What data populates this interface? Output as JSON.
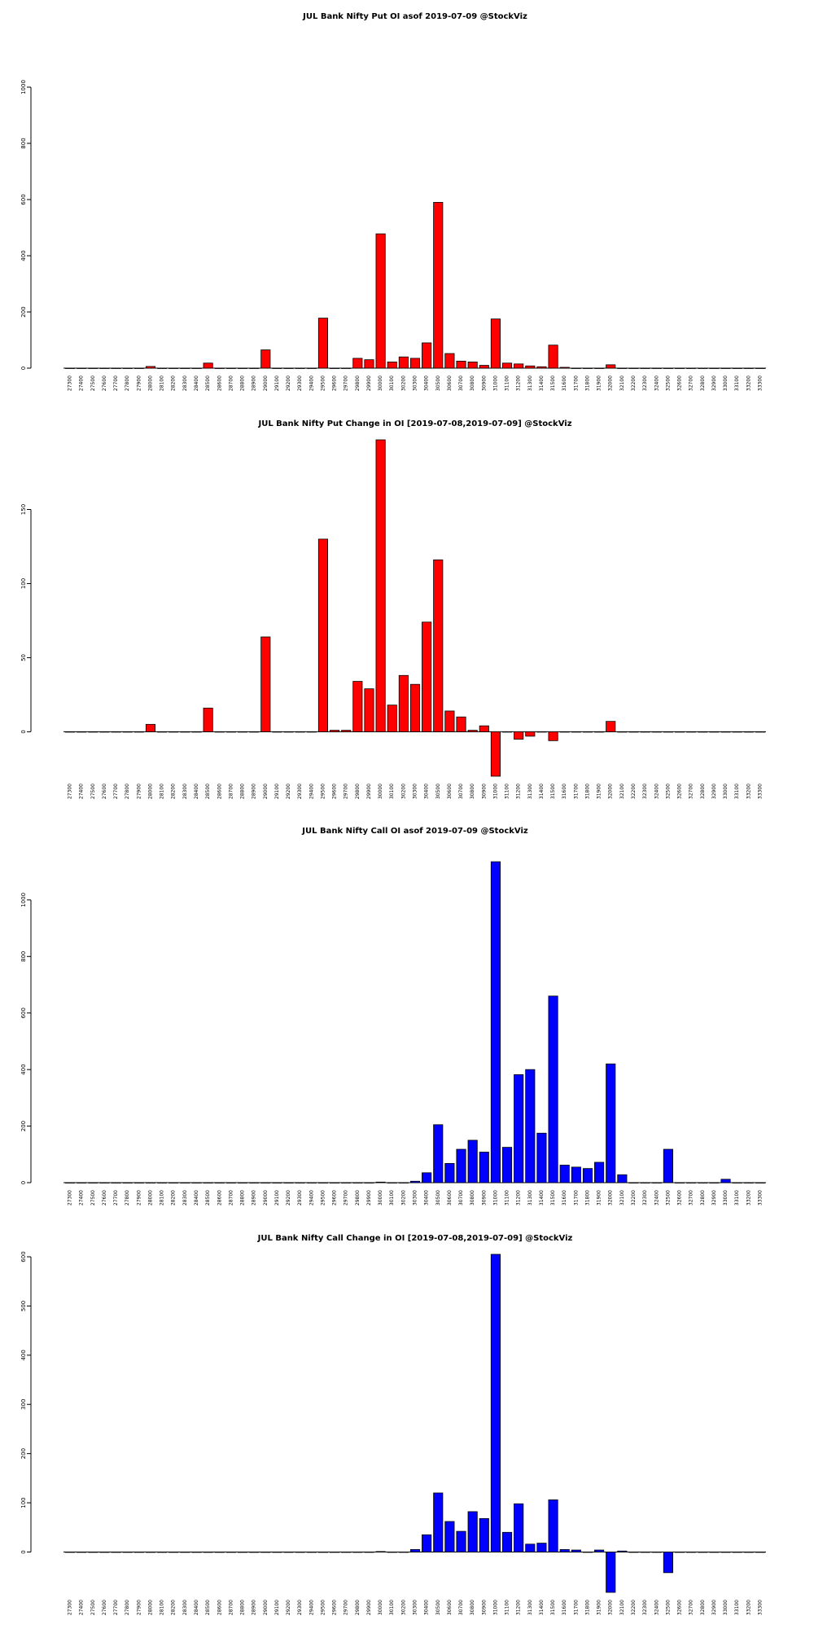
{
  "chart_data": [
    {
      "type": "bar",
      "title": "JUL Bank Nifty Put OI asof 2019-07-09 @StockViz",
      "color": "#ff0000",
      "categories": [
        "27300",
        "27400",
        "27500",
        "27600",
        "27700",
        "27800",
        "27900",
        "28000",
        "28100",
        "28200",
        "28300",
        "28400",
        "28500",
        "28600",
        "28700",
        "28800",
        "28900",
        "29000",
        "29100",
        "29200",
        "29300",
        "29400",
        "29500",
        "29600",
        "29700",
        "29800",
        "29900",
        "30000",
        "30100",
        "30200",
        "30300",
        "30400",
        "30500",
        "30600",
        "30700",
        "30800",
        "30900",
        "31000",
        "31100",
        "31200",
        "31300",
        "31400",
        "31500",
        "31600",
        "31700",
        "31800",
        "31900",
        "32000",
        "32100",
        "32200",
        "32300",
        "32400",
        "32500",
        "32600",
        "32700",
        "32800",
        "32900",
        "33000",
        "33100",
        "33200",
        "33300"
      ],
      "values": [
        0,
        0,
        0,
        0,
        0,
        0,
        0,
        6,
        0,
        0,
        0,
        0,
        18,
        0,
        0,
        0,
        0,
        65,
        0,
        0,
        0,
        0,
        178,
        0,
        0,
        35,
        30,
        478,
        22,
        40,
        35,
        90,
        590,
        52,
        25,
        22,
        10,
        175,
        18,
        15,
        8,
        5,
        82,
        3,
        0,
        0,
        0,
        12,
        0,
        0,
        0,
        0,
        0,
        0,
        0,
        0,
        0,
        0,
        0,
        0,
        0
      ],
      "ylim": [
        0,
        1000
      ],
      "yticks": [
        0,
        200,
        400,
        600,
        800,
        1000
      ]
    },
    {
      "type": "bar",
      "title": "JUL Bank Nifty Put Change in OI [2019-07-08,2019-07-09] @StockViz",
      "color": "#ff0000",
      "categories": [
        "27300",
        "27400",
        "27500",
        "27600",
        "27700",
        "27800",
        "27900",
        "28000",
        "28100",
        "28200",
        "28300",
        "28400",
        "28500",
        "28600",
        "28700",
        "28800",
        "28900",
        "29000",
        "29100",
        "29200",
        "29300",
        "29400",
        "29500",
        "29600",
        "29700",
        "29800",
        "29900",
        "30000",
        "30100",
        "30200",
        "30300",
        "30400",
        "30500",
        "30600",
        "30700",
        "30800",
        "30900",
        "31000",
        "31100",
        "31200",
        "31300",
        "31400",
        "31500",
        "31600",
        "31700",
        "31800",
        "31900",
        "32000",
        "32100",
        "32200",
        "32300",
        "32400",
        "32500",
        "32600",
        "32700",
        "32800",
        "32900",
        "33000",
        "33100",
        "33200",
        "33300"
      ],
      "values": [
        0,
        0,
        0,
        0,
        0,
        0,
        0,
        5,
        0,
        0,
        0,
        0,
        16,
        0,
        0,
        0,
        0,
        64,
        0,
        0,
        0,
        0,
        130,
        1,
        1,
        34,
        29,
        197,
        18,
        38,
        32,
        74,
        116,
        14,
        10,
        1,
        4,
        -30,
        0,
        -5,
        -3,
        0,
        -6,
        0,
        0,
        0,
        0,
        7,
        0,
        0,
        0,
        0,
        0,
        0,
        0,
        0,
        0,
        0,
        0,
        0,
        0
      ],
      "ylim": [
        -30,
        197
      ],
      "yticks": [
        0,
        50,
        100,
        150
      ]
    },
    {
      "type": "bar",
      "title": "JUL Bank Nifty Call OI asof 2019-07-09 @StockViz",
      "color": "#0000ff",
      "categories": [
        "27300",
        "27400",
        "27500",
        "27600",
        "27700",
        "27800",
        "27900",
        "28000",
        "28100",
        "28200",
        "28300",
        "28400",
        "28500",
        "28600",
        "28700",
        "28800",
        "28900",
        "29000",
        "29100",
        "29200",
        "29300",
        "29400",
        "29500",
        "29600",
        "29700",
        "29800",
        "29900",
        "30000",
        "30100",
        "30200",
        "30300",
        "30400",
        "30500",
        "30600",
        "30700",
        "30800",
        "30900",
        "31000",
        "31100",
        "31200",
        "31300",
        "31400",
        "31500",
        "31600",
        "31700",
        "31800",
        "31900",
        "32000",
        "32100",
        "32200",
        "32300",
        "32400",
        "32500",
        "32600",
        "32700",
        "32800",
        "32900",
        "33000",
        "33100",
        "33200",
        "33300"
      ],
      "values": [
        0,
        0,
        0,
        0,
        0,
        0,
        0,
        0,
        0,
        0,
        0,
        0,
        0,
        0,
        0,
        0,
        0,
        0,
        0,
        0,
        0,
        0,
        0,
        0,
        0,
        0,
        0,
        2,
        0,
        0,
        5,
        35,
        205,
        68,
        118,
        150,
        108,
        1135,
        125,
        382,
        400,
        175,
        660,
        62,
        55,
        50,
        72,
        420,
        28,
        0,
        0,
        0,
        118,
        0,
        0,
        0,
        0,
        12,
        0,
        0,
        0
      ],
      "ylim": [
        0,
        1135
      ],
      "yticks": [
        0,
        200,
        400,
        600,
        800,
        1000
      ]
    },
    {
      "type": "bar",
      "title": "JUL Bank Nifty Call Change in OI [2019-07-08,2019-07-09] @StockViz",
      "color": "#0000ff",
      "categories": [
        "27300",
        "27400",
        "27500",
        "27600",
        "27700",
        "27800",
        "27900",
        "28000",
        "28100",
        "28200",
        "28300",
        "28400",
        "28500",
        "28600",
        "28700",
        "28800",
        "28900",
        "29000",
        "29100",
        "29200",
        "29300",
        "29400",
        "29500",
        "29600",
        "29700",
        "29800",
        "29900",
        "30000",
        "30100",
        "30200",
        "30300",
        "30400",
        "30500",
        "30600",
        "30700",
        "30800",
        "30900",
        "31000",
        "31100",
        "31200",
        "31300",
        "31400",
        "31500",
        "31600",
        "31700",
        "31800",
        "31900",
        "32000",
        "32100",
        "32200",
        "32300",
        "32400",
        "32500",
        "32600",
        "32700",
        "32800",
        "32900",
        "33000",
        "33100",
        "33200",
        "33300"
      ],
      "values": [
        0,
        0,
        0,
        0,
        0,
        0,
        0,
        0,
        0,
        0,
        0,
        0,
        0,
        0,
        0,
        0,
        0,
        0,
        0,
        0,
        0,
        0,
        0,
        0,
        0,
        0,
        0,
        1,
        0,
        0,
        5,
        35,
        120,
        62,
        42,
        82,
        68,
        605,
        40,
        98,
        16,
        18,
        106,
        5,
        4,
        0,
        4,
        -82,
        2,
        0,
        0,
        0,
        -42,
        0,
        0,
        0,
        0,
        0,
        0,
        0,
        0
      ],
      "ylim": [
        -82,
        605
      ],
      "yticks": [
        0,
        100,
        200,
        300,
        400,
        500,
        600
      ]
    }
  ]
}
